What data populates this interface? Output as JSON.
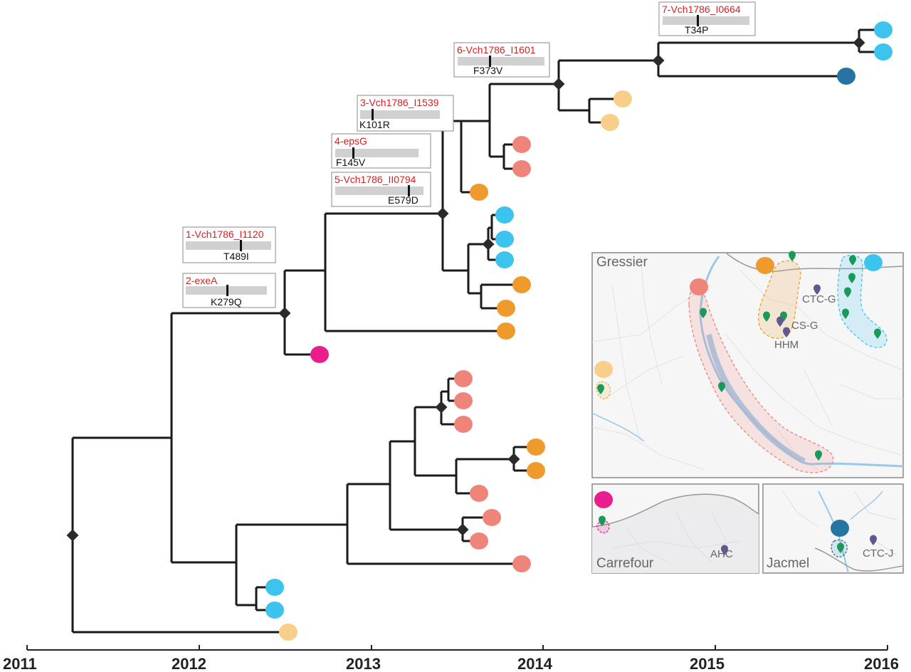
{
  "figure": {
    "x_axis": {
      "ticks": [
        "2011",
        "2012",
        "2013",
        "2014",
        "2015",
        "2016"
      ],
      "range": [
        2011,
        2016
      ]
    },
    "colors": {
      "tree_line": "#1a1a1a",
      "node_marker": "#2a2a2a",
      "mutation_label": "#d62020",
      "gene_bar": "#d0d0d0",
      "map_frame": "#888888",
      "river": "#9cc8e8",
      "pin": "#1a9a5a",
      "facility": "#5c5a8f",
      "clade_colors": {
        "light_blue": "#3cc4ee",
        "dark_blue": "#2674a4",
        "pale_yellow": "#f7cf8a",
        "salmon": "#ef847b",
        "orange": "#ef9a2c",
        "magenta": "#e91e8c"
      }
    },
    "mutations": [
      {
        "id": "mut-1",
        "gene": "1-Vch1786_I1120",
        "change": "T489I"
      },
      {
        "id": "mut-2",
        "gene": "2-exeA",
        "change": "K279Q"
      },
      {
        "id": "mut-3",
        "gene": "3-Vch1786_I1539",
        "change": "K101R"
      },
      {
        "id": "mut-4",
        "gene": "4-epsG",
        "change": "F145V"
      },
      {
        "id": "mut-5",
        "gene": "5-Vch1786_II0794",
        "change": "E579D"
      },
      {
        "id": "mut-6",
        "gene": "6-Vch1786_I1601",
        "change": "F373V"
      },
      {
        "id": "mut-7",
        "gene": "7-Vch1786_I0664",
        "change": "T34P"
      }
    ],
    "map": {
      "regions": {
        "gressier": "Gressier",
        "carrefour": "Carrefour",
        "jacmel": "Jacmel"
      },
      "sites": {
        "ctc_g": "CTC-G",
        "cs_g": "CS-G",
        "hhm": "HHM",
        "ahc": "AHC",
        "ctc_j": "CTC-J"
      }
    }
  }
}
